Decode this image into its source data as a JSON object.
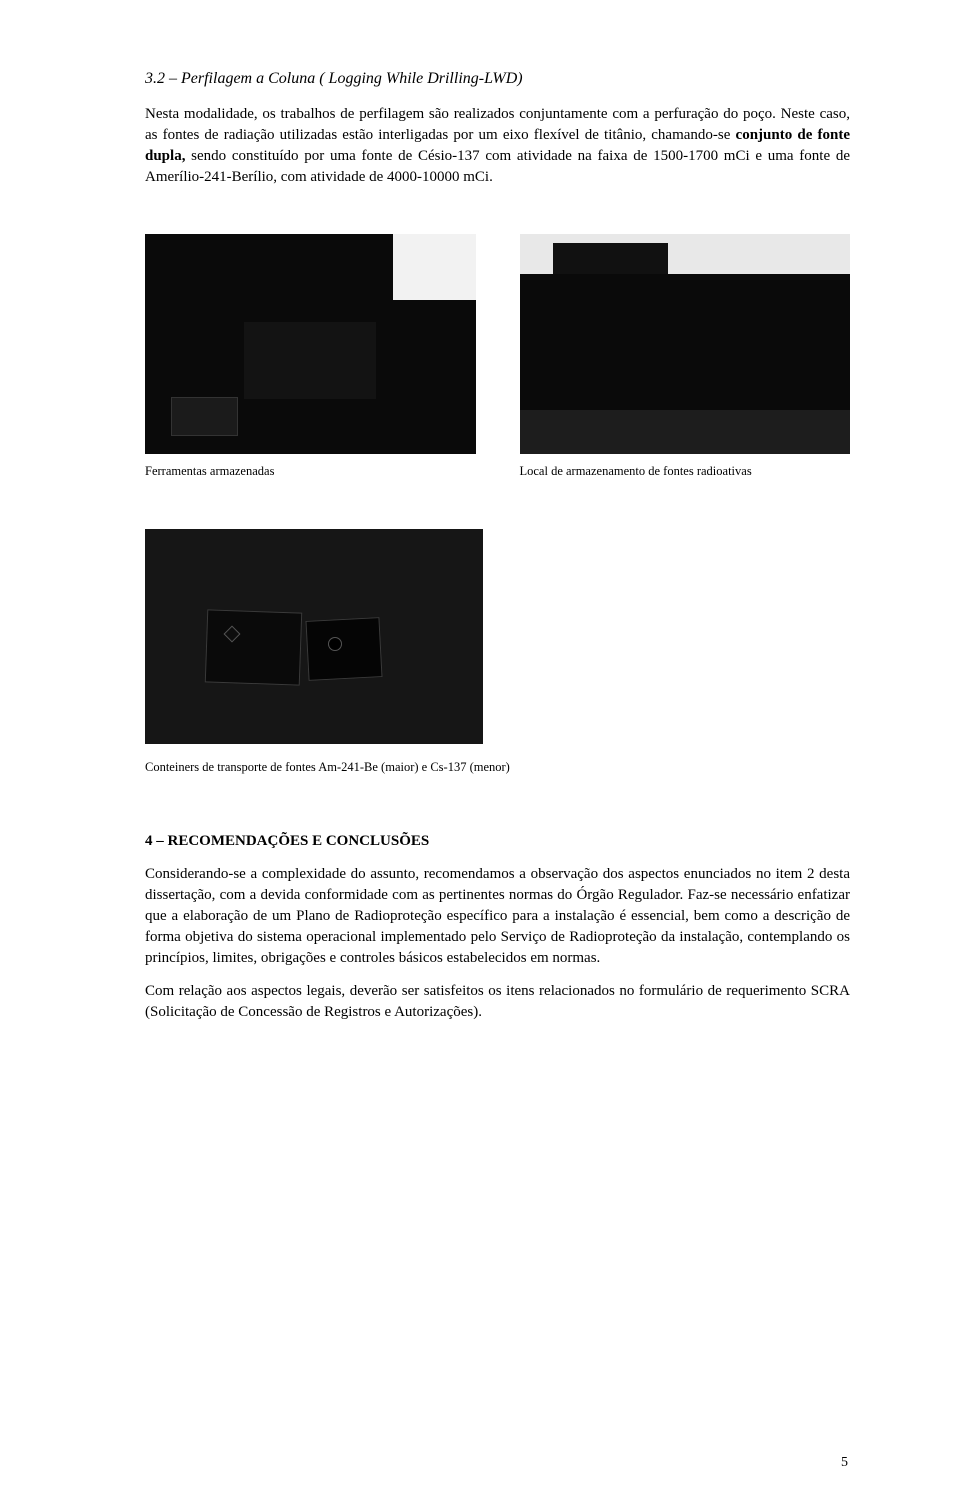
{
  "section_3_2": {
    "heading": "3.2 – Perfilagem a Coluna ( Logging While Drilling-LWD)",
    "para1_a": "Nesta modalidade, os trabalhos de perfilagem são realizados conjuntamente com a perfuração do poço. Neste caso, as fontes de radiação utilizadas estão interligadas por um eixo flexível de titânio, chamando-se ",
    "para1_bold": "conjunto de fonte dupla,",
    "para1_b": " sendo constituído por uma fonte de Césio-137 com atividade na faixa de 1500-1700 mCi e uma fonte de Amerílio-241-Berílio, com atividade de 4000-10000 mCi."
  },
  "figures_row1": {
    "left_caption": "Ferramentas armazenadas",
    "right_caption": "Local de armazenamento de fontes radioativas"
  },
  "figure_single": {
    "caption": "Conteiners de transporte de fontes Am-241-Be (maior) e Cs-137 (menor)"
  },
  "section_4": {
    "heading": "4 – RECOMENDAÇÕES E CONCLUSÕES",
    "para1": "Considerando-se a complexidade do assunto, recomendamos a observação dos aspectos enunciados no item 2 desta dissertação, com a devida conformidade com as pertinentes normas do Órgão Regulador. Faz-se necessário enfatizar que a elaboração de um Plano de Radioproteção específico para a instalação é essencial, bem como a descrição de forma objetiva do sistema operacional implementado pelo Serviço de Radioproteção da instalação, contemplando os princípios, limites, obrigações e controles básicos estabelecidos em normas.",
    "para2": "Com relação aos aspectos legais, deverão ser satisfeitos os itens relacionados no formulário de requerimento SCRA (Solicitação de Concessão de Registros e Autorizações)."
  },
  "page_number": "5"
}
